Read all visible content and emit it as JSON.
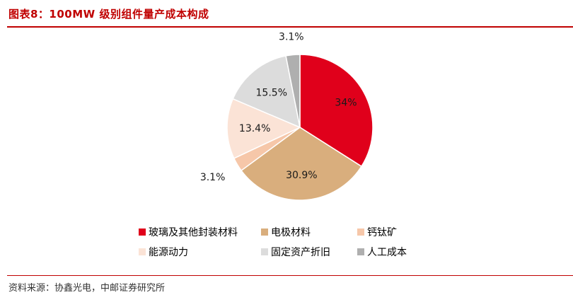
{
  "header": {
    "title": "图表8：100MW 级别组件量产成本构成"
  },
  "source": "资料来源：协鑫光电，中邮证券研究所",
  "chart_data": {
    "type": "pie",
    "title": "",
    "slices": [
      {
        "label": "玻璃及其他封装材料",
        "value": 34.0,
        "display": "34%",
        "color": "#E0001B"
      },
      {
        "label": "电极材料",
        "value": 30.9,
        "display": "30.9%",
        "color": "#D9AE7D"
      },
      {
        "label": "钙钛矿",
        "value": 3.1,
        "display": "3.1%",
        "color": "#F6C7A9"
      },
      {
        "label": "能源动力",
        "value": 13.4,
        "display": "13.4%",
        "color": "#FBE3D6"
      },
      {
        "label": "固定资产折旧",
        "value": 15.5,
        "display": "15.5%",
        "color": "#DCDCDC"
      },
      {
        "label": "人工成本",
        "value": 3.1,
        "display": "3.1%",
        "color": "#AFAFAF"
      }
    ],
    "legend_position": "bottom"
  }
}
